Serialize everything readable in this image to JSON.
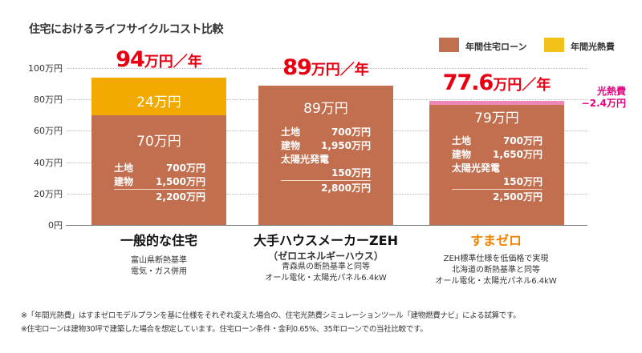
{
  "colors": {
    "loan": "#c26f50",
    "energy": "#f2a900",
    "legend_energy": "#f2c21a",
    "reduction": "#ef86b8",
    "total_red": "#e60012",
    "highlight_orange": "#f08300",
    "pink_text": "#e4007f"
  },
  "chart_data": {
    "type": "bar",
    "stacked": true,
    "title": "住宅におけるライフサイクルコスト比較",
    "ylabel": "",
    "ylim": [
      0,
      100
    ],
    "yticks": [
      "0円",
      "20万円",
      "40万円",
      "60万円",
      "80万円",
      "100万円"
    ],
    "ytick_values": [
      0,
      20,
      40,
      60,
      80,
      100
    ],
    "grid": true,
    "legend_position": "top-right",
    "legend": [
      {
        "name": "年間住宅ローン",
        "color_key": "loan"
      },
      {
        "name": "年間光熱費",
        "color_key": "energy"
      }
    ],
    "categories": [
      "一般的な住宅",
      "大手ハウスメーカーZEH",
      "すまゼロ"
    ],
    "series": [
      {
        "name": "年間住宅ローン",
        "values": [
          70,
          89,
          79
        ]
      },
      {
        "name": "年間光熱費",
        "values": [
          24,
          0,
          -2.4
        ]
      }
    ],
    "totals": [
      {
        "num": "94",
        "unit": "万円／年"
      },
      {
        "num": "89",
        "unit": "万円／年"
      },
      {
        "num": "77.6",
        "unit": "万円／年"
      }
    ]
  },
  "bars": [
    {
      "loan_label": "70万円",
      "energy_label": "24万円",
      "rows": [
        {
          "k": "土地",
          "v": "700万円"
        },
        {
          "k": "建物",
          "v": "1,500万円"
        }
      ],
      "solar_label": "",
      "solar_value": "",
      "sum": "2,200万円",
      "category": "一般的な住宅",
      "subtitle": "",
      "desc": [
        "富山県断熱基準",
        "電気・ガス併用"
      ]
    },
    {
      "loan_label": "89万円",
      "rows": [
        {
          "k": "土地",
          "v": "700万円"
        },
        {
          "k": "建物",
          "v": "1,950万円"
        }
      ],
      "solar_label": "太陽光発電",
      "solar_value": "150万円",
      "sum": "2,800万円",
      "category": "大手ハウスメーカーZEH",
      "subtitle": "（ゼロエネルギーハウス）",
      "desc": [
        "青森県の断熱基準と同等",
        "オール電化・太陽光パネル6.4kW"
      ]
    },
    {
      "loan_label": "79万円",
      "rows": [
        {
          "k": "土地",
          "v": "700万円"
        },
        {
          "k": "建物",
          "v": "1,650万円"
        }
      ],
      "solar_label": "太陽光発電",
      "solar_value": "150万円",
      "sum": "2,500万円",
      "category": "すまゼロ",
      "subtitle": "",
      "desc": [
        "ZEH標準仕様を低価格で実現",
        "北海道の断熱基準と同等",
        "オール電化・太陽光パネル6.4kW"
      ]
    }
  ],
  "energy_reduction": {
    "line1": "光熱費",
    "line2": "−2.4万円"
  },
  "notes": [
    "※「年間光熱費」はすまゼロモデルプランを基に仕様をそれぞれ変えた場合の、住宅光熱費シミュレーションツール「建物燃費ナビ」による試算です。",
    "※住宅ローンは建物30坪で建築した場合を想定しています。住宅ローン条件・金利0.65%、35年ローンでの当社比較です。"
  ]
}
